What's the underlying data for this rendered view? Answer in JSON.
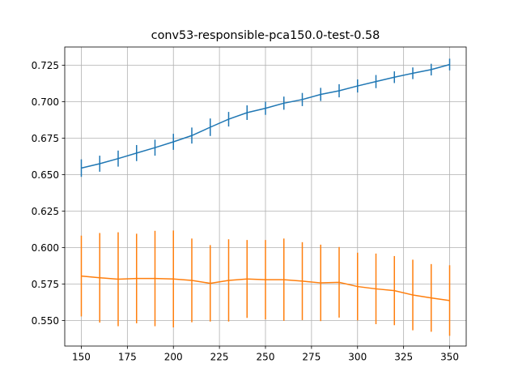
{
  "chart_data": {
    "type": "line",
    "title": "conv53-responsible-pca150.0-test-0.58",
    "xlabel": "",
    "ylabel": "",
    "xlim": [
      141,
      359
    ],
    "ylim": [
      0.5325,
      0.7375
    ],
    "grid": true,
    "x_ticks": [
      150,
      175,
      200,
      225,
      250,
      275,
      300,
      325,
      350
    ],
    "x_tick_labels": [
      "150",
      "175",
      "200",
      "225",
      "250",
      "275",
      "300",
      "325",
      "350"
    ],
    "y_ticks": [
      0.55,
      0.575,
      0.6,
      0.625,
      0.65,
      0.675,
      0.7,
      0.725
    ],
    "y_tick_labels": [
      "0.550",
      "0.575",
      "0.600",
      "0.625",
      "0.650",
      "0.675",
      "0.700",
      "0.725"
    ],
    "x": [
      150,
      160,
      170,
      180,
      190,
      200,
      210,
      220,
      230,
      240,
      250,
      260,
      270,
      280,
      290,
      300,
      310,
      320,
      330,
      340,
      350
    ],
    "series": [
      {
        "color": "#1f77b4",
        "values": [
          0.6545,
          0.6575,
          0.661,
          0.6648,
          0.6685,
          0.6725,
          0.6768,
          0.6825,
          0.688,
          0.6925,
          0.6955,
          0.699,
          0.7015,
          0.705,
          0.7075,
          0.7108,
          0.7138,
          0.7168,
          0.7195,
          0.722,
          0.7255
        ],
        "err": [
          0.006,
          0.0055,
          0.0055,
          0.0055,
          0.0055,
          0.0055,
          0.0055,
          0.006,
          0.005,
          0.005,
          0.0045,
          0.0045,
          0.0045,
          0.0045,
          0.0045,
          0.0045,
          0.0045,
          0.004,
          0.004,
          0.004,
          0.004
        ]
      },
      {
        "color": "#ff7f0e",
        "values": [
          0.5805,
          0.5793,
          0.5783,
          0.5788,
          0.5788,
          0.5785,
          0.5775,
          0.5755,
          0.5775,
          0.5785,
          0.578,
          0.578,
          0.577,
          0.5758,
          0.5762,
          0.5733,
          0.5717,
          0.5705,
          0.5675,
          0.5655,
          0.5637
        ],
        "err": [
          0.0277,
          0.0307,
          0.0322,
          0.0307,
          0.0327,
          0.0332,
          0.0287,
          0.0262,
          0.0282,
          0.0267,
          0.0272,
          0.0282,
          0.0267,
          0.0262,
          0.0242,
          0.0232,
          0.0242,
          0.0237,
          0.0242,
          0.0232,
          0.0242
        ]
      }
    ]
  }
}
